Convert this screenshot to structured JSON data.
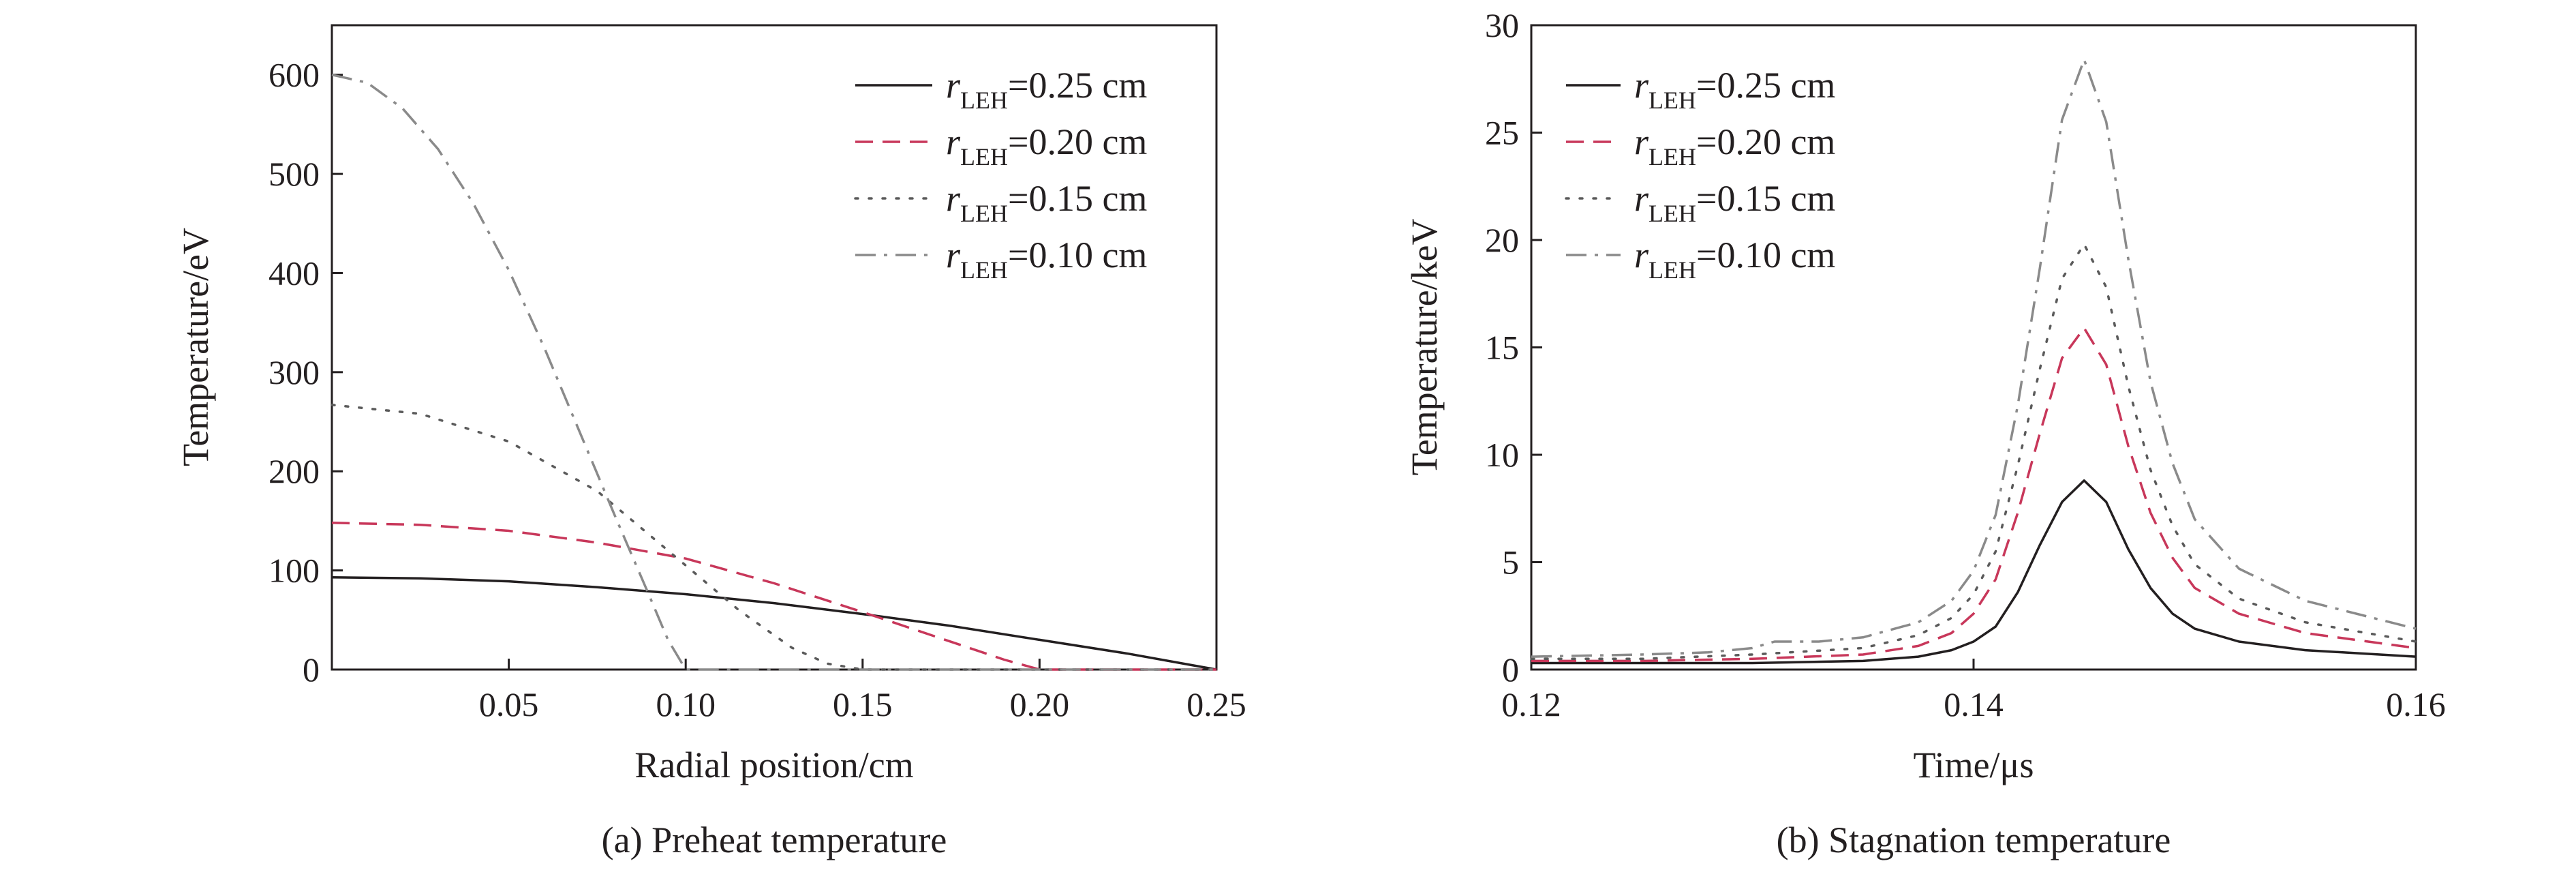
{
  "colors": {
    "solid": "#231f20",
    "dashed": "#c8375a",
    "dotted": "#5a5a5a",
    "dashdot": "#8a8a8a",
    "axis": "#231f20"
  },
  "chart_data": [
    {
      "type": "line",
      "caption": "(a) Preheat temperature",
      "xlabel": "Radial position/cm",
      "ylabel": "Temperature/eV",
      "xlim": [
        0,
        0.25
      ],
      "ylim": [
        0,
        650
      ],
      "xticks": [
        0.05,
        0.1,
        0.15,
        0.2,
        0.25
      ],
      "xtick_labels": [
        "0.05",
        "0.10",
        "0.15",
        "0.20",
        "0.25"
      ],
      "yticks": [
        0,
        100,
        200,
        300,
        400,
        500,
        600
      ],
      "ytick_labels": [
        "0",
        "100",
        "200",
        "300",
        "400",
        "500",
        "600"
      ],
      "grid": false,
      "legend_position": "top-right",
      "series": [
        {
          "name_main": "r",
          "name_sub": "LEH",
          "name_rest": "=0.25 cm",
          "style": "solid",
          "x": [
            0,
            0.025,
            0.05,
            0.075,
            0.1,
            0.125,
            0.15,
            0.175,
            0.2,
            0.225,
            0.25
          ],
          "y": [
            93,
            92,
            89,
            83,
            76,
            67,
            56,
            44,
            30,
            16,
            0
          ]
        },
        {
          "name_main": "r",
          "name_sub": "LEH",
          "name_rest": "=0.20 cm",
          "style": "dashed",
          "x": [
            0,
            0.025,
            0.05,
            0.075,
            0.1,
            0.125,
            0.15,
            0.175,
            0.19,
            0.2,
            0.25
          ],
          "y": [
            148,
            146,
            140,
            128,
            112,
            87,
            58,
            28,
            10,
            0,
            0
          ]
        },
        {
          "name_main": "r",
          "name_sub": "LEH",
          "name_rest": "=0.15 cm",
          "style": "dotted",
          "x": [
            0,
            0.025,
            0.05,
            0.075,
            0.1,
            0.115,
            0.13,
            0.14,
            0.15,
            0.25
          ],
          "y": [
            267,
            258,
            230,
            180,
            105,
            60,
            22,
            6,
            0,
            0
          ]
        },
        {
          "name_main": "r",
          "name_sub": "LEH",
          "name_rest": "=0.10 cm",
          "style": "dashdot",
          "x": [
            0,
            0.01,
            0.02,
            0.03,
            0.04,
            0.05,
            0.06,
            0.07,
            0.08,
            0.09,
            0.095,
            0.1,
            0.25
          ],
          "y": [
            600,
            592,
            566,
            525,
            470,
            403,
            325,
            240,
            155,
            72,
            30,
            0,
            0
          ]
        }
      ]
    },
    {
      "type": "line",
      "caption": "(b) Stagnation temperature",
      "xlabel": "Time/μs",
      "ylabel": "Temperature/keV",
      "xlim": [
        0.12,
        0.16
      ],
      "ylim": [
        0,
        30
      ],
      "xticks": [
        0.12,
        0.14,
        0.16
      ],
      "xtick_labels": [
        "0.12",
        "0.14",
        "0.16"
      ],
      "yticks": [
        0,
        5,
        10,
        15,
        20,
        25,
        30
      ],
      "ytick_labels": [
        "0",
        "5",
        "10",
        "15",
        "20",
        "25",
        "30"
      ],
      "grid": false,
      "legend_position": "top-left",
      "series": [
        {
          "name_main": "r",
          "name_sub": "LEH",
          "name_rest": "=0.25 cm",
          "style": "solid",
          "x": [
            0.12,
            0.125,
            0.13,
            0.135,
            0.1375,
            0.139,
            0.14,
            0.141,
            0.142,
            0.143,
            0.144,
            0.145,
            0.146,
            0.147,
            0.148,
            0.149,
            0.15,
            0.152,
            0.155,
            0.16
          ],
          "y": [
            0.3,
            0.3,
            0.3,
            0.4,
            0.6,
            0.9,
            1.3,
            2.0,
            3.6,
            5.8,
            7.8,
            8.8,
            7.8,
            5.6,
            3.8,
            2.6,
            1.9,
            1.3,
            0.9,
            0.6
          ]
        },
        {
          "name_main": "r",
          "name_sub": "LEH",
          "name_rest": "=0.20 cm",
          "style": "dashed",
          "x": [
            0.12,
            0.125,
            0.13,
            0.135,
            0.1375,
            0.139,
            0.14,
            0.141,
            0.142,
            0.143,
            0.144,
            0.145,
            0.146,
            0.147,
            0.148,
            0.149,
            0.15,
            0.152,
            0.155,
            0.16
          ],
          "y": [
            0.4,
            0.4,
            0.5,
            0.7,
            1.1,
            1.7,
            2.6,
            4.2,
            7.3,
            11.0,
            14.5,
            15.9,
            14.2,
            10.4,
            7.3,
            5.2,
            3.8,
            2.6,
            1.7,
            1.0
          ]
        },
        {
          "name_main": "r",
          "name_sub": "LEH",
          "name_rest": "=0.15 cm",
          "style": "dotted",
          "x": [
            0.12,
            0.125,
            0.13,
            0.135,
            0.1375,
            0.139,
            0.14,
            0.141,
            0.142,
            0.143,
            0.144,
            0.145,
            0.146,
            0.147,
            0.148,
            0.149,
            0.15,
            0.152,
            0.155,
            0.16
          ],
          "y": [
            0.5,
            0.5,
            0.7,
            1.0,
            1.6,
            2.4,
            3.5,
            5.5,
            9.5,
            14.0,
            18.2,
            19.8,
            17.8,
            13.2,
            9.3,
            6.7,
            4.9,
            3.3,
            2.2,
            1.3
          ]
        },
        {
          "name_main": "r",
          "name_sub": "LEH",
          "name_rest": "=0.10 cm",
          "style": "dashdot",
          "x": [
            0.12,
            0.125,
            0.128,
            0.13,
            0.131,
            0.133,
            0.135,
            0.1375,
            0.139,
            0.14,
            0.141,
            0.142,
            0.143,
            0.144,
            0.145,
            0.146,
            0.147,
            0.148,
            0.149,
            0.15,
            0.152,
            0.155,
            0.16
          ],
          "y": [
            0.6,
            0.7,
            0.8,
            1.0,
            1.3,
            1.3,
            1.5,
            2.2,
            3.2,
            4.6,
            7.2,
            12.3,
            18.7,
            25.6,
            28.4,
            25.5,
            19.1,
            13.4,
            9.6,
            7.0,
            4.7,
            3.2,
            1.9
          ]
        }
      ]
    }
  ]
}
